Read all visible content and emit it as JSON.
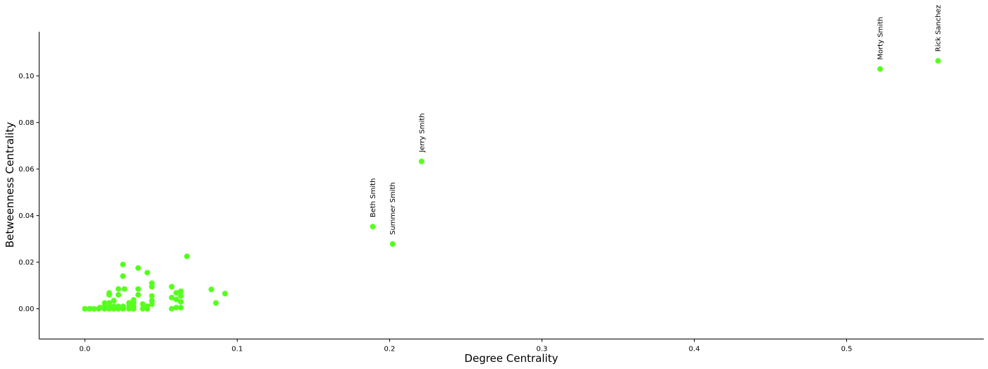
{
  "chart_data": {
    "type": "scatter",
    "title": "",
    "xlabel": "Degree Centrality",
    "ylabel": "Betweenness Centrality",
    "xlim": [
      -0.03,
      0.59
    ],
    "ylim": [
      -0.013,
      0.119
    ],
    "xticks": [
      0.0,
      0.1,
      0.2,
      0.3,
      0.4,
      0.5
    ],
    "xtick_labels": [
      "0.0",
      "0.1",
      "0.2",
      "0.3",
      "0.4",
      "0.5"
    ],
    "yticks": [
      0.0,
      0.02,
      0.04,
      0.06,
      0.08,
      0.1
    ],
    "ytick_labels": [
      "0.00",
      "0.02",
      "0.04",
      "0.06",
      "0.08",
      "0.10"
    ],
    "grid": false,
    "point_color": "#57ff1f",
    "labeled_points": [
      {
        "label": "Rick Sanchez",
        "x": 0.56,
        "y": 0.1065
      },
      {
        "label": "Morty Smith",
        "x": 0.522,
        "y": 0.103
      },
      {
        "label": "Jerry Smith",
        "x": 0.221,
        "y": 0.0633
      },
      {
        "label": "Beth Smith",
        "x": 0.189,
        "y": 0.0353
      },
      {
        "label": "Summer Smith",
        "x": 0.202,
        "y": 0.0278
      }
    ],
    "points": [
      [
        0.0,
        0.0
      ],
      [
        0.003,
        0.0
      ],
      [
        0.006,
        0.0
      ],
      [
        0.009,
        0.0
      ],
      [
        0.01,
        0.0005
      ],
      [
        0.013,
        0.0
      ],
      [
        0.013,
        0.001
      ],
      [
        0.013,
        0.0025
      ],
      [
        0.016,
        0.0
      ],
      [
        0.016,
        0.001
      ],
      [
        0.016,
        0.0025
      ],
      [
        0.016,
        0.006
      ],
      [
        0.016,
        0.0068
      ],
      [
        0.019,
        0.0
      ],
      [
        0.019,
        0.001
      ],
      [
        0.019,
        0.0035
      ],
      [
        0.022,
        0.0
      ],
      [
        0.022,
        0.001
      ],
      [
        0.022,
        0.006
      ],
      [
        0.022,
        0.0085
      ],
      [
        0.025,
        0.0
      ],
      [
        0.025,
        0.001
      ],
      [
        0.025,
        0.014
      ],
      [
        0.025,
        0.019
      ],
      [
        0.026,
        0.0085
      ],
      [
        0.029,
        0.0
      ],
      [
        0.029,
        0.001
      ],
      [
        0.029,
        0.0025
      ],
      [
        0.032,
        0.0
      ],
      [
        0.032,
        0.001
      ],
      [
        0.032,
        0.0025
      ],
      [
        0.032,
        0.0038
      ],
      [
        0.035,
        0.006
      ],
      [
        0.035,
        0.0085
      ],
      [
        0.035,
        0.0175
      ],
      [
        0.038,
        0.0
      ],
      [
        0.038,
        0.002
      ],
      [
        0.041,
        0.0
      ],
      [
        0.041,
        0.001
      ],
      [
        0.041,
        0.0155
      ],
      [
        0.044,
        0.002
      ],
      [
        0.044,
        0.0035
      ],
      [
        0.044,
        0.0055
      ],
      [
        0.044,
        0.0095
      ],
      [
        0.044,
        0.011
      ],
      [
        0.057,
        0.0
      ],
      [
        0.057,
        0.0048
      ],
      [
        0.057,
        0.0095
      ],
      [
        0.06,
        0.0005
      ],
      [
        0.06,
        0.004
      ],
      [
        0.06,
        0.0068
      ],
      [
        0.063,
        0.0005
      ],
      [
        0.063,
        0.003
      ],
      [
        0.063,
        0.0055
      ],
      [
        0.063,
        0.0075
      ],
      [
        0.067,
        0.0225
      ],
      [
        0.083,
        0.0083
      ],
      [
        0.086,
        0.0025
      ],
      [
        0.092,
        0.0065
      ],
      [
        0.189,
        0.0353
      ],
      [
        0.202,
        0.0278
      ],
      [
        0.221,
        0.0633
      ],
      [
        0.522,
        0.103
      ],
      [
        0.56,
        0.1065
      ]
    ]
  }
}
